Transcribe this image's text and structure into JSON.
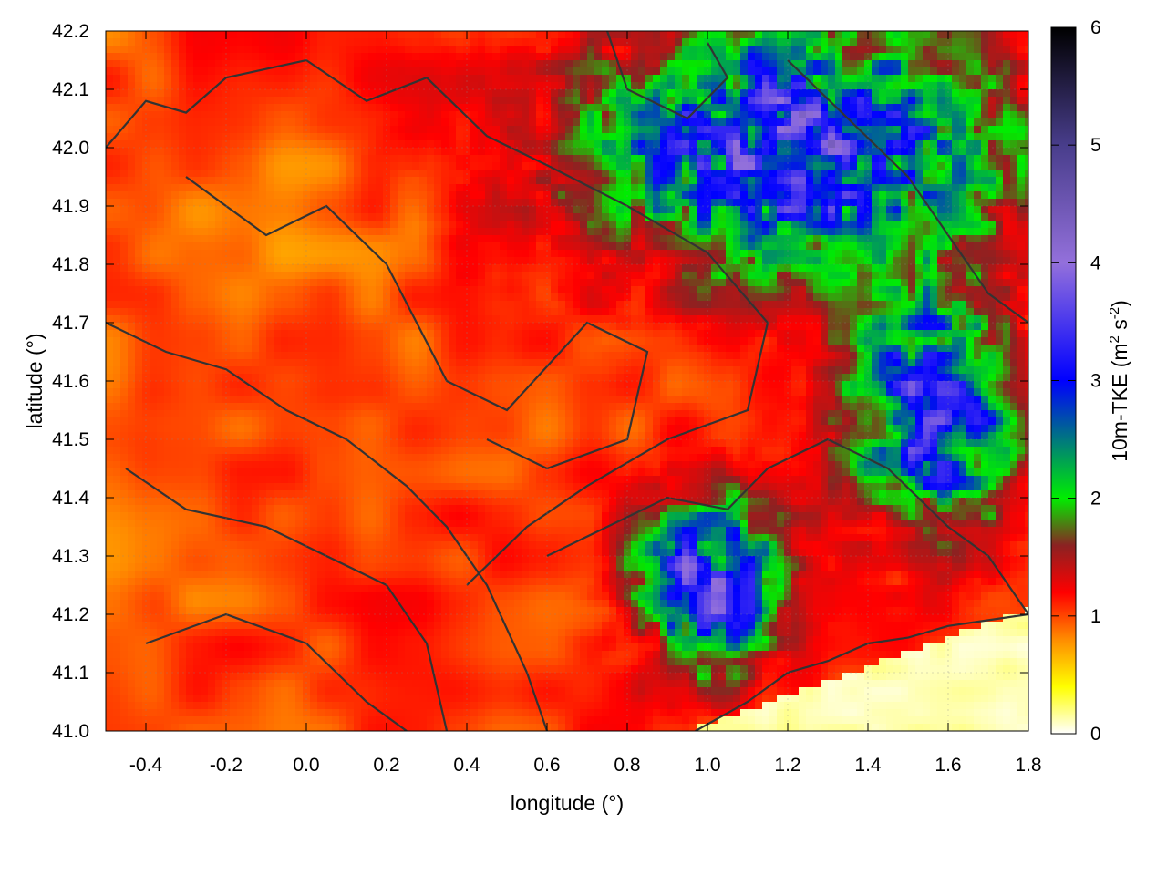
{
  "chart_data": {
    "type": "heatmap",
    "title": "",
    "xlabel": "longitude (°)",
    "ylabel": "latitude (°)",
    "xlim": [
      -0.5,
      1.8
    ],
    "ylim": [
      41.0,
      42.2
    ],
    "x_ticks": [
      "-0.4",
      "-0.2",
      "0.0",
      "0.2",
      "0.4",
      "0.6",
      "0.8",
      "1.0",
      "1.2",
      "1.4",
      "1.6",
      "1.8"
    ],
    "x_tick_values": [
      -0.4,
      -0.2,
      0.0,
      0.2,
      0.4,
      0.6,
      0.8,
      1.0,
      1.2,
      1.4,
      1.6,
      1.8
    ],
    "y_ticks": [
      "41.0",
      "41.1",
      "41.2",
      "41.3",
      "41.4",
      "41.5",
      "41.6",
      "41.7",
      "41.8",
      "41.9",
      "42.0",
      "42.1",
      "42.2"
    ],
    "y_tick_values": [
      41.0,
      41.1,
      41.2,
      41.3,
      41.4,
      41.5,
      41.6,
      41.7,
      41.8,
      41.9,
      42.0,
      42.1,
      42.2
    ],
    "grid": true,
    "colorbar": {
      "label_main": "10m-TKE (m",
      "label_sup1": "2",
      "label_mid": " s",
      "label_sup2": "-2",
      "label_end": ")",
      "range": [
        0,
        6
      ],
      "ticks": [
        "0",
        "1",
        "2",
        "3",
        "4",
        "5",
        "6"
      ],
      "tick_values": [
        0,
        1,
        2,
        3,
        4,
        5,
        6
      ],
      "colormap": [
        {
          "v": 0.0,
          "c": "#ffffff"
        },
        {
          "v": 0.4,
          "c": "#ffff00"
        },
        {
          "v": 0.8,
          "c": "#ff8c00"
        },
        {
          "v": 1.2,
          "c": "#ff0000"
        },
        {
          "v": 1.6,
          "c": "#8b2222"
        },
        {
          "v": 2.0,
          "c": "#00ee00"
        },
        {
          "v": 3.0,
          "c": "#0000ff"
        },
        {
          "v": 4.0,
          "c": "#9370db"
        },
        {
          "v": 5.0,
          "c": "#483d8b"
        },
        {
          "v": 6.0,
          "c": "#000000"
        }
      ]
    },
    "sea_region": {
      "description_value": "low TKE over sea",
      "value": 0.1
    },
    "contour_color": "#333333"
  }
}
